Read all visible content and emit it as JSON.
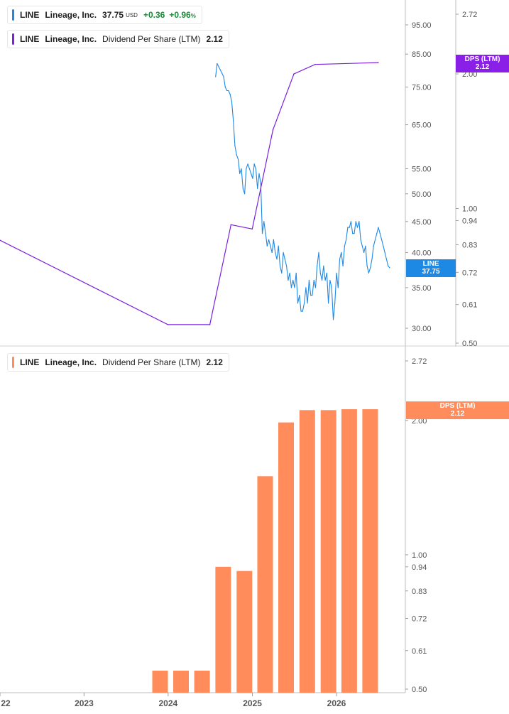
{
  "legends": {
    "price": {
      "ticker": "LINE",
      "name": "Lineage, Inc.",
      "value": "37.75",
      "currency": "USD",
      "change": "+0.36",
      "change_pct": "+0.96",
      "pct_sign": "%",
      "color": "#1e88e5"
    },
    "dps_line": {
      "ticker": "LINE",
      "name": "Lineage, Inc.",
      "metric": "Dividend Per Share (LTM)",
      "value": "2.12",
      "color": "#7b1fe0"
    },
    "dps_bar": {
      "ticker": "LINE",
      "name": "Lineage, Inc.",
      "metric": "Dividend Per Share (LTM)",
      "value": "2.12",
      "color": "#ff8c5a"
    }
  },
  "badges": {
    "price": {
      "label": "LINE",
      "value": "37.75",
      "color": "#1e88e5"
    },
    "dps_top": {
      "label": "DPS (LTM)",
      "value": "2.12",
      "color": "#8a1fe8"
    },
    "dps_bottom": {
      "label": "DPS (LTM)",
      "value": "2.12",
      "color": "#ff8c5a"
    }
  },
  "chart_data": [
    {
      "type": "line",
      "series": [
        {
          "name": "LINE Lineage, Inc.",
          "color": "#1e88e5",
          "x": [
            "2024-07-25",
            "2024-08-01",
            "2024-08-08",
            "2024-08-15",
            "2024-08-22",
            "2024-08-29",
            "2024-09-05",
            "2024-09-12",
            "2024-09-19",
            "2024-09-26",
            "2024-10-03",
            "2024-10-10",
            "2024-10-17",
            "2024-10-24",
            "2024-10-31",
            "2024-11-07",
            "2024-11-14",
            "2024-11-21",
            "2024-11-28",
            "2024-12-05",
            "2024-12-12",
            "2024-12-19",
            "2024-12-26",
            "2025-01-02",
            "2025-01-09",
            "2025-01-16",
            "2025-01-23",
            "2025-01-30",
            "2025-02-06",
            "2025-02-13",
            "2025-02-20",
            "2025-02-27",
            "2025-03-06",
            "2025-03-13",
            "2025-03-20",
            "2025-03-27",
            "2025-04-03",
            "2025-04-10",
            "2025-04-17",
            "2025-04-24",
            "2025-05-01",
            "2025-05-08",
            "2025-05-15",
            "2025-05-22",
            "2025-05-29",
            "2025-06-05",
            "2025-06-12",
            "2025-06-19",
            "2025-06-26",
            "2025-07-03",
            "2025-07-10",
            "2025-07-17",
            "2025-07-24",
            "2025-07-31",
            "2025-08-07",
            "2025-08-14",
            "2025-08-21",
            "2025-08-28",
            "2025-09-04",
            "2025-09-11",
            "2025-09-18",
            "2025-09-25",
            "2025-10-02",
            "2025-10-09",
            "2025-10-16",
            "2025-10-23",
            "2025-10-30",
            "2025-11-06",
            "2025-11-13",
            "2025-11-20",
            "2025-11-27",
            "2025-12-04",
            "2025-12-11",
            "2025-12-18",
            "2025-12-25",
            "2026-01-01",
            "2026-01-08",
            "2026-01-15",
            "2026-01-22",
            "2026-01-29",
            "2026-02-05",
            "2026-02-12",
            "2026-02-19",
            "2026-02-26",
            "2026-03-05",
            "2026-03-12",
            "2026-03-19",
            "2026-03-26",
            "2026-04-02",
            "2026-04-09",
            "2026-04-16",
            "2026-04-23",
            "2026-04-30",
            "2026-05-07",
            "2026-05-14",
            "2026-05-21",
            "2026-05-28",
            "2026-06-04",
            "2026-06-11",
            "2026-06-18",
            "2026-06-25",
            "2026-07-02",
            "2026-07-09",
            "2026-07-16",
            "2026-07-23",
            "2026-07-30",
            "2026-08-06",
            "2026-08-13",
            "2026-08-20"
          ],
          "values": [
            78,
            82,
            81,
            80,
            79,
            78,
            75,
            74,
            74,
            73,
            71,
            66,
            60,
            58,
            57,
            54,
            55,
            51,
            50,
            55,
            56,
            55,
            54,
            53,
            56,
            55,
            51,
            54,
            52,
            43,
            45,
            43,
            41,
            42,
            41,
            40,
            42,
            40,
            39,
            41,
            38,
            37,
            40,
            39,
            38,
            36,
            37,
            35,
            36,
            35,
            37,
            33,
            34,
            32,
            32,
            33,
            35,
            33,
            36,
            34,
            34,
            36,
            35,
            38,
            40,
            37,
            36,
            38,
            36,
            37,
            33,
            36,
            35,
            31,
            33,
            37,
            35,
            39,
            40,
            38,
            41,
            42,
            44,
            44,
            45,
            43,
            43,
            45,
            44,
            45,
            42,
            41,
            40,
            41,
            38,
            37,
            37.75,
            39,
            41,
            42,
            43,
            44,
            43,
            42,
            41,
            40,
            39,
            38,
            37.75
          ]
        },
        {
          "name": "LINE Lineage, Inc. Dividend Per Share (LTM)",
          "color": "#7b1fe0",
          "x": [
            "2021-12-31",
            "2023-12-31",
            "2024-06-30",
            "2024-09-30",
            "2024-12-31",
            "2025-03-31",
            "2025-06-30",
            "2025-09-30",
            "2026-07-01"
          ],
          "values": [
            0.85,
            0.55,
            0.55,
            0.92,
            0.9,
            1.5,
            2.0,
            2.1,
            2.12
          ]
        }
      ],
      "price_axis": {
        "ticks": [
          "30.00",
          "35.00",
          "40.00",
          "45.00",
          "50.00",
          "55.00",
          "65.00",
          "75.00",
          "85.00",
          "95.00"
        ],
        "scale": "log"
      },
      "dps_axis": {
        "ticks": [
          "0.50",
          "0.61",
          "0.72",
          "0.83",
          "0.94",
          "1.00",
          "2.00",
          "2.72"
        ],
        "scale": "log"
      }
    },
    {
      "type": "bar",
      "series": [
        {
          "name": "LINE Lineage, Inc. Dividend Per Share (LTM)",
          "color": "#ff8c5a",
          "x": [
            "2021-12-31",
            "2023-12-31",
            "2024-03-31",
            "2024-06-30",
            "2024-09-30",
            "2024-12-31",
            "2025-03-31",
            "2025-06-30",
            "2025-09-30",
            "2025-12-31",
            "2026-03-31",
            "2026-06-30"
          ],
          "values": [
            0.85,
            0.55,
            0.55,
            0.55,
            0.94,
            0.92,
            1.5,
            1.98,
            2.11,
            2.11,
            2.12,
            2.12
          ]
        }
      ],
      "dps_axis": {
        "ticks": [
          "0.50",
          "0.61",
          "0.72",
          "0.83",
          "0.94",
          "1.00",
          "2.00",
          "2.72"
        ],
        "scale": "log"
      },
      "x_ticks": [
        "22",
        "2023",
        "2024",
        "2025",
        "2026"
      ]
    }
  ]
}
